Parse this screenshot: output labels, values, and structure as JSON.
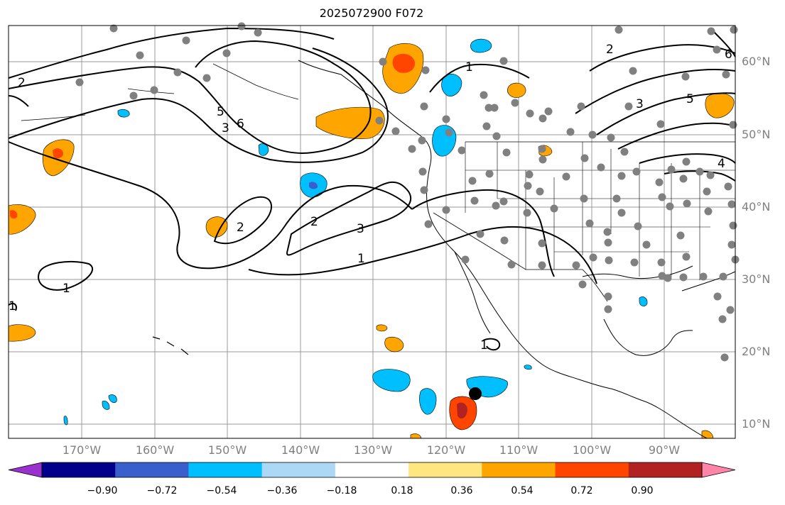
{
  "title": "2025072900 F072",
  "lon_labels": [
    "170°W",
    "160°W",
    "150°W",
    "140°W",
    "130°W",
    "120°W",
    "110°W",
    "100°W",
    "90°W"
  ],
  "lat_labels": [
    "60°N",
    "50°N",
    "40°N",
    "30°N",
    "20°N",
    "10°N"
  ],
  "contour_labels": [
    "1",
    "2",
    "3",
    "4",
    "5",
    "6"
  ],
  "colorbar": {
    "ticks": [
      "−0.90",
      "−0.72",
      "−0.54",
      "−0.36",
      "−0.18",
      "0.18",
      "0.36",
      "0.54",
      "0.72",
      "0.90"
    ],
    "colors": [
      "#9932cc",
      "#00008b",
      "#3a5fcd",
      "#00bfff",
      "#add8f5",
      "#ffffff",
      "#ffe680",
      "#ffa500",
      "#ff4500",
      "#b22222",
      "#ff85a8"
    ]
  },
  "colors": {
    "contour": "#000000",
    "stations": "#808080",
    "grid": "#999999",
    "storm_marker": "#000000"
  }
}
